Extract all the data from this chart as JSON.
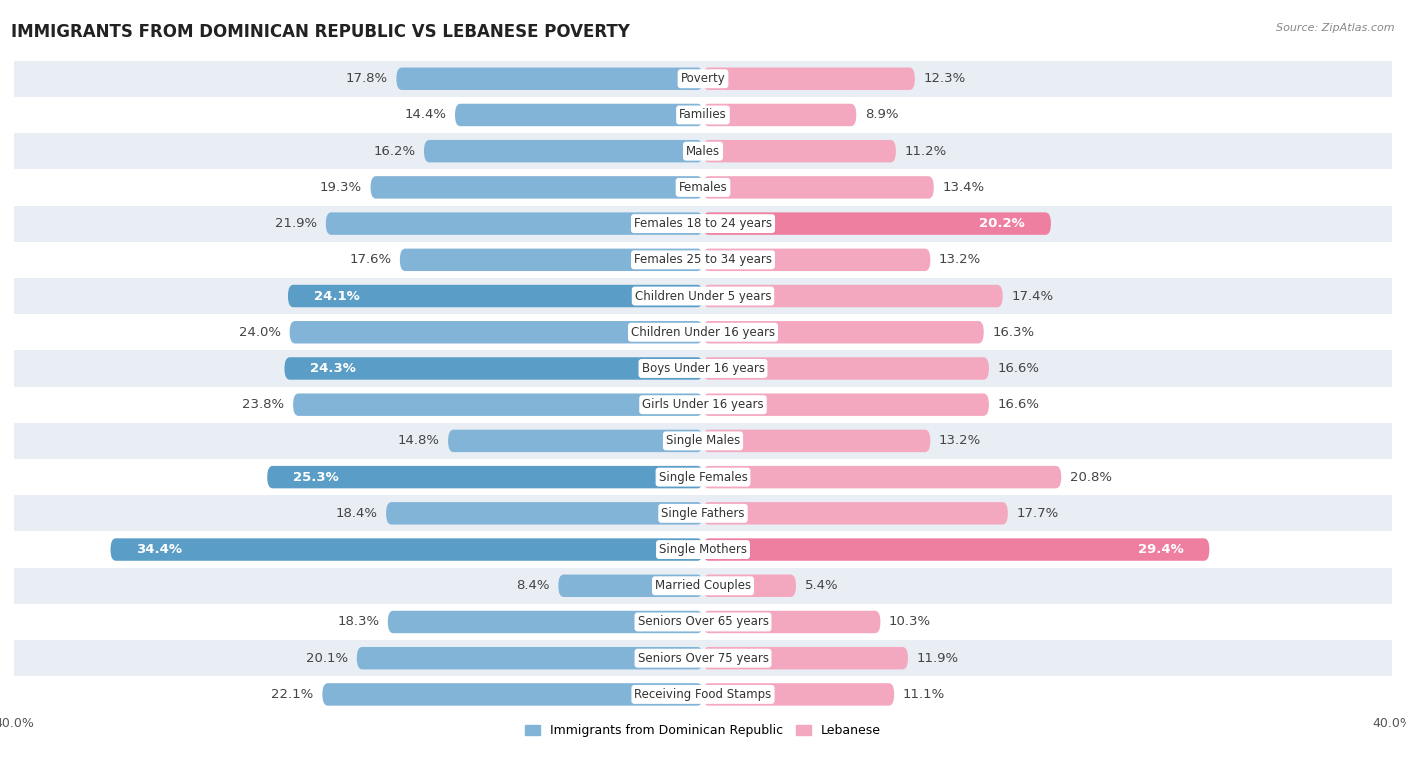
{
  "title": "IMMIGRANTS FROM DOMINICAN REPUBLIC VS LEBANESE POVERTY",
  "source": "Source: ZipAtlas.com",
  "categories": [
    "Poverty",
    "Families",
    "Males",
    "Females",
    "Females 18 to 24 years",
    "Females 25 to 34 years",
    "Children Under 5 years",
    "Children Under 16 years",
    "Boys Under 16 years",
    "Girls Under 16 years",
    "Single Males",
    "Single Females",
    "Single Fathers",
    "Single Mothers",
    "Married Couples",
    "Seniors Over 65 years",
    "Seniors Over 75 years",
    "Receiving Food Stamps"
  ],
  "dominican": [
    17.8,
    14.4,
    16.2,
    19.3,
    21.9,
    17.6,
    24.1,
    24.0,
    24.3,
    23.8,
    14.8,
    25.3,
    18.4,
    34.4,
    8.4,
    18.3,
    20.1,
    22.1
  ],
  "lebanese": [
    12.3,
    8.9,
    11.2,
    13.4,
    20.2,
    13.2,
    17.4,
    16.3,
    16.6,
    16.6,
    13.2,
    20.8,
    17.7,
    29.4,
    5.4,
    10.3,
    11.9,
    11.1
  ],
  "dominican_color": "#82b4d8",
  "lebanese_color": "#f4a8c0",
  "dominican_highlight_indices": [
    6,
    8,
    11,
    13
  ],
  "lebanese_highlight_indices": [
    4,
    13
  ],
  "dominican_highlight_color": "#5a9ec8",
  "lebanese_highlight_color": "#ee7fa0",
  "axis_limit": 40.0,
  "bg_color": "#ffffff",
  "row_even_color": "#e8eef4",
  "row_odd_color": "#ffffff",
  "bar_height": 0.62,
  "value_fontsize": 9.5,
  "category_fontsize": 8.5,
  "title_fontsize": 12,
  "legend_labels": [
    "Immigrants from Dominican Republic",
    "Lebanese"
  ]
}
